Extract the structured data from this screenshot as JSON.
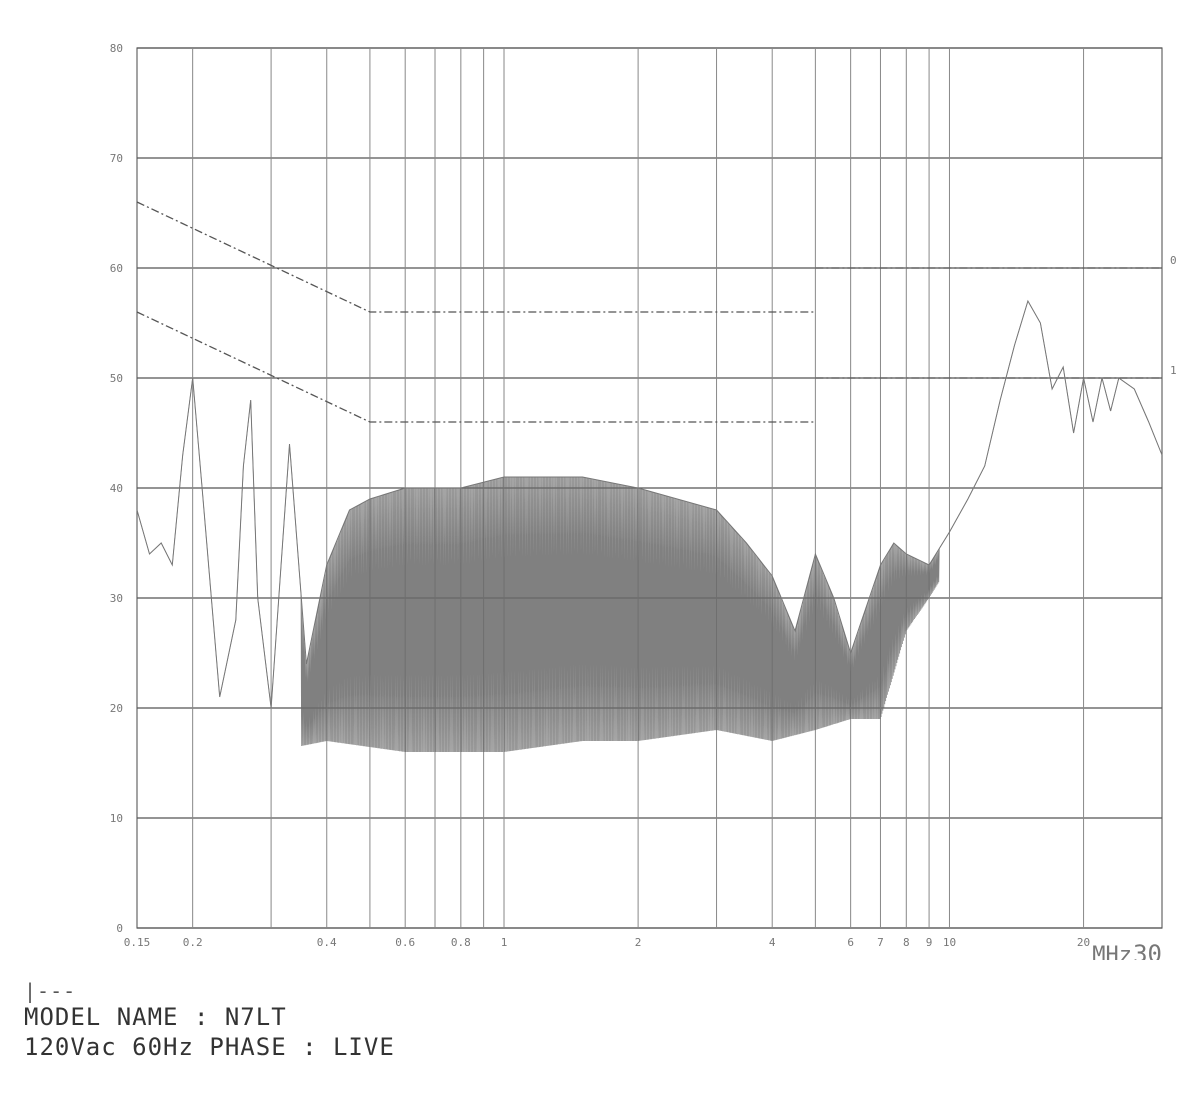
{
  "chart_data": {
    "type": "line",
    "title": "",
    "xlabel": "MHz",
    "ylabel": "",
    "x_scale": "log",
    "xlim": [
      0.15,
      30
    ],
    "ylim": [
      0,
      80
    ],
    "yticks": [
      0,
      10,
      20,
      30,
      40,
      50,
      60,
      70,
      80
    ],
    "ytick_labels": [
      "0",
      "10",
      "20",
      "30",
      "40",
      "50",
      "60",
      "70",
      "80"
    ],
    "xticks": [
      0.15,
      0.2,
      0.4,
      0.6,
      0.8,
      1,
      2,
      4,
      6,
      7,
      8,
      9,
      10,
      20,
      30
    ],
    "xtick_labels": [
      "0.15",
      "0.2",
      "0.4",
      "0.6",
      "0.8",
      "1",
      "2",
      "4",
      "6",
      "7",
      "8",
      "9",
      "10",
      "20",
      "30"
    ],
    "xunit_label": "MHz",
    "grid": true,
    "limit_lines": [
      {
        "name": "0",
        "points": [
          [
            0.15,
            66
          ],
          [
            0.5,
            56
          ],
          [
            5,
            56
          ]
        ],
        "x2": [
          5,
          30
        ],
        "y2": 60
      },
      {
        "name": "1",
        "points": [
          [
            0.15,
            56
          ],
          [
            0.5,
            46
          ],
          [
            5,
            46
          ]
        ],
        "x2": [
          5,
          30
        ],
        "y2": 50
      }
    ],
    "series": [
      {
        "envelope_upper": [
          [
            0.15,
            38
          ],
          [
            0.16,
            34
          ],
          [
            0.17,
            35
          ],
          [
            0.18,
            33
          ],
          [
            0.19,
            43
          ],
          [
            0.2,
            50
          ],
          [
            0.21,
            40
          ],
          [
            0.23,
            21
          ],
          [
            0.25,
            28
          ],
          [
            0.26,
            42
          ],
          [
            0.27,
            48
          ],
          [
            0.28,
            30
          ],
          [
            0.3,
            20
          ],
          [
            0.33,
            44
          ],
          [
            0.36,
            24
          ],
          [
            0.4,
            33
          ],
          [
            0.45,
            38
          ],
          [
            0.5,
            39
          ],
          [
            0.6,
            40
          ],
          [
            0.8,
            40
          ],
          [
            1,
            41
          ],
          [
            1.5,
            41
          ],
          [
            2,
            40
          ],
          [
            3,
            38
          ],
          [
            3.5,
            35
          ],
          [
            4,
            32
          ],
          [
            4.5,
            27
          ],
          [
            5,
            34
          ],
          [
            5.5,
            30
          ],
          [
            6,
            25
          ],
          [
            7,
            33
          ],
          [
            7.5,
            35
          ],
          [
            8,
            34
          ],
          [
            9,
            33
          ],
          [
            10,
            36
          ],
          [
            11,
            39
          ],
          [
            12,
            42
          ],
          [
            13,
            48
          ],
          [
            14,
            53
          ],
          [
            15,
            57
          ],
          [
            16,
            55
          ],
          [
            17,
            49
          ],
          [
            18,
            51
          ],
          [
            19,
            45
          ],
          [
            20,
            50
          ],
          [
            21,
            46
          ],
          [
            22,
            50
          ],
          [
            23,
            47
          ],
          [
            24,
            50
          ],
          [
            26,
            49
          ],
          [
            28,
            46
          ],
          [
            30,
            43
          ]
        ],
        "envelope_lower": [
          [
            0.15,
            38
          ],
          [
            0.2,
            20
          ],
          [
            0.25,
            20
          ],
          [
            0.3,
            16
          ],
          [
            0.4,
            17
          ],
          [
            0.6,
            16
          ],
          [
            0.8,
            16
          ],
          [
            1,
            16
          ],
          [
            1.5,
            17
          ],
          [
            2,
            17
          ],
          [
            3,
            18
          ],
          [
            4,
            17
          ],
          [
            5,
            18
          ],
          [
            6,
            19
          ],
          [
            7,
            19
          ],
          [
            8,
            27
          ],
          [
            9,
            30
          ],
          [
            10,
            33
          ],
          [
            12,
            40
          ],
          [
            15,
            57
          ],
          [
            20,
            50
          ],
          [
            30,
            43
          ]
        ]
      }
    ],
    "limit_labels": [
      "0",
      "1"
    ]
  },
  "footer": {
    "marker": "|---",
    "line1": "MODEL NAME : N7LT",
    "line2": "120Vac 60Hz PHASE : LIVE"
  }
}
